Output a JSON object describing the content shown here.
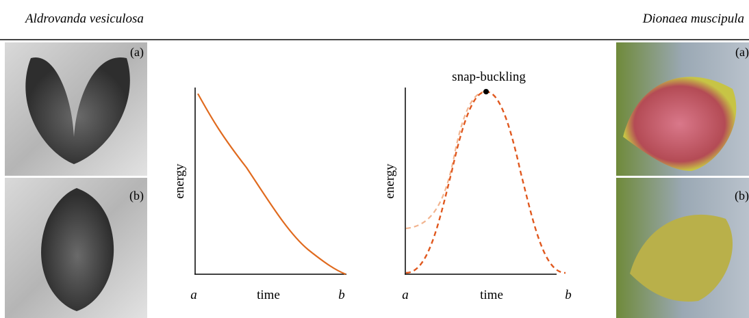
{
  "header": {
    "left": "Aldrovanda vesiculosa",
    "right": "Dionaea muscipula"
  },
  "photos": {
    "left": [
      "(a)",
      "(b)"
    ],
    "right": [
      "(a)",
      "(b)"
    ]
  },
  "graphs": [
    {
      "y_label": "energy",
      "x_label": "time",
      "x_start": "a",
      "x_end": "b"
    },
    {
      "y_label": "energy",
      "x_label": "time",
      "x_start": "a",
      "x_end": "b",
      "annotation": "snap-buckling"
    }
  ]
}
